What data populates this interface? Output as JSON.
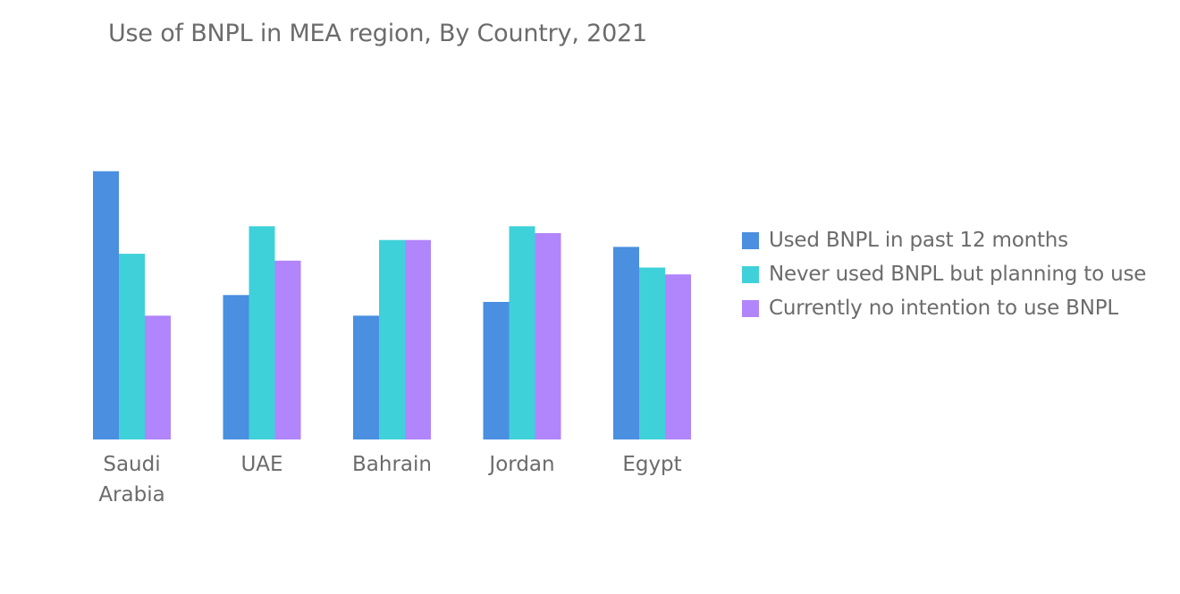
{
  "chart_data": {
    "type": "bar",
    "title": "Use of BNPL in MEA region, By Country, 2021",
    "categories": [
      "Saudi Arabia",
      "UAE",
      "Bahrain",
      "Jordan",
      "Egypt"
    ],
    "category_lines": [
      [
        "Saudi",
        "Arabia"
      ],
      [
        "UAE"
      ],
      [
        "Bahrain"
      ],
      [
        "Jordan"
      ],
      [
        "Egypt"
      ]
    ],
    "series": [
      {
        "name": "Used BNPL in past 12 months",
        "color": "#4a8fe0",
        "values": [
          39,
          21,
          18,
          20,
          28
        ]
      },
      {
        "name": "Never used BNPL but planning to use",
        "color": "#3fd1d9",
        "values": [
          27,
          31,
          29,
          31,
          25
        ]
      },
      {
        "name": "Currently no intention to use BNPL",
        "color": "#b185fb",
        "values": [
          18,
          26,
          29,
          30,
          24
        ]
      }
    ],
    "ylim": [
      0,
      40
    ],
    "grid": false,
    "legend_position": "right"
  }
}
